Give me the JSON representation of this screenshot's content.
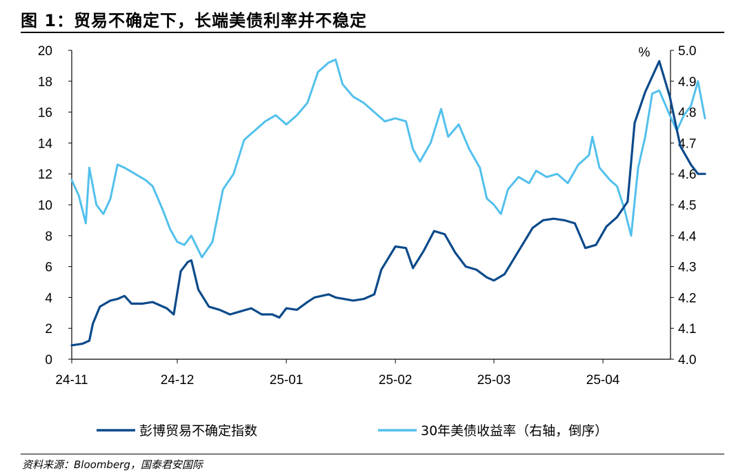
{
  "title": "图 1：贸易不确定下，长端美债利率并不稳定",
  "source": "资料来源：Bloomberg，国泰君安国际",
  "chart_data": {
    "type": "line",
    "x_tick_labels": [
      "24-11",
      "24-12",
      "25-01",
      "25-02",
      "25-03",
      "25-04"
    ],
    "y_left": {
      "ylim": [
        0,
        20
      ],
      "ticks": [
        "0",
        "2",
        "4",
        "6",
        "8",
        "10",
        "12",
        "14",
        "16",
        "18",
        "20"
      ]
    },
    "y_right": {
      "unit": "%",
      "ylim": [
        4.0,
        5.0
      ],
      "inverted": true,
      "ticks": [
        "4.0",
        "4.1",
        "4.2",
        "4.3",
        "4.4",
        "4.5",
        "4.6",
        "4.7",
        "4.8",
        "4.9",
        "5.0"
      ]
    },
    "colors": {
      "uncertainty": "#0b4a8a",
      "yield": "#52c0ec"
    },
    "series": [
      {
        "name": "彭博贸易不确定指数",
        "axis": "left",
        "values": [
          [
            "2024-11-01",
            0.9
          ],
          [
            "2024-11-04",
            1.0
          ],
          [
            "2024-11-06",
            1.2
          ],
          [
            "2024-11-07",
            2.3
          ],
          [
            "2024-11-09",
            3.4
          ],
          [
            "2024-11-12",
            3.8
          ],
          [
            "2024-11-14",
            3.9
          ],
          [
            "2024-11-16",
            4.1
          ],
          [
            "2024-11-18",
            3.6
          ],
          [
            "2024-11-21",
            3.6
          ],
          [
            "2024-11-24",
            3.7
          ],
          [
            "2024-11-26",
            3.5
          ],
          [
            "2024-11-28",
            3.3
          ],
          [
            "2024-11-30",
            2.9
          ],
          [
            "2024-12-02",
            5.7
          ],
          [
            "2024-12-04",
            6.3
          ],
          [
            "2024-12-05",
            6.4
          ],
          [
            "2024-12-07",
            4.5
          ],
          [
            "2024-12-10",
            3.4
          ],
          [
            "2024-12-13",
            3.2
          ],
          [
            "2024-12-16",
            2.9
          ],
          [
            "2024-12-19",
            3.1
          ],
          [
            "2024-12-22",
            3.3
          ],
          [
            "2024-12-25",
            2.9
          ],
          [
            "2024-12-28",
            2.9
          ],
          [
            "2024-12-30",
            2.7
          ],
          [
            "2025-01-01",
            3.3
          ],
          [
            "2025-01-04",
            3.2
          ],
          [
            "2025-01-07",
            3.7
          ],
          [
            "2025-01-09",
            4.0
          ],
          [
            "2025-01-13",
            4.2
          ],
          [
            "2025-01-15",
            4.0
          ],
          [
            "2025-01-20",
            3.8
          ],
          [
            "2025-01-23",
            3.9
          ],
          [
            "2025-01-26",
            4.2
          ],
          [
            "2025-01-28",
            5.8
          ],
          [
            "2025-02-01",
            7.3
          ],
          [
            "2025-02-04",
            7.2
          ],
          [
            "2025-02-06",
            5.9
          ],
          [
            "2025-02-09",
            7.0
          ],
          [
            "2025-02-12",
            8.3
          ],
          [
            "2025-02-15",
            8.1
          ],
          [
            "2025-02-18",
            6.9
          ],
          [
            "2025-02-21",
            6.0
          ],
          [
            "2025-02-24",
            5.8
          ],
          [
            "2025-02-27",
            5.3
          ],
          [
            "2025-03-01",
            5.1
          ],
          [
            "2025-03-04",
            5.5
          ],
          [
            "2025-03-08",
            7.0
          ],
          [
            "2025-03-12",
            8.5
          ],
          [
            "2025-03-15",
            9.0
          ],
          [
            "2025-03-18",
            9.1
          ],
          [
            "2025-03-21",
            9.0
          ],
          [
            "2025-03-24",
            8.8
          ],
          [
            "2025-03-27",
            7.2
          ],
          [
            "2025-03-30",
            7.4
          ],
          [
            "2025-04-02",
            8.6
          ],
          [
            "2025-04-05",
            9.2
          ],
          [
            "2025-04-08",
            10.2
          ],
          [
            "2025-04-10",
            15.3
          ],
          [
            "2025-04-13",
            17.3
          ],
          [
            "2025-04-17",
            19.3
          ],
          [
            "2025-04-20",
            17.0
          ],
          [
            "2025-04-23",
            13.8
          ],
          [
            "2025-04-26",
            12.6
          ],
          [
            "2025-04-28",
            12.0
          ],
          [
            "2025-04-30",
            12.0
          ]
        ]
      },
      {
        "name": "30年美债收益率（右轴，倒序）",
        "axis": "right",
        "values": [
          [
            "2024-11-01",
            4.58
          ],
          [
            "2024-11-03",
            4.53
          ],
          [
            "2024-11-05",
            4.44
          ],
          [
            "2024-11-06",
            4.62
          ],
          [
            "2024-11-08",
            4.5
          ],
          [
            "2024-11-10",
            4.47
          ],
          [
            "2024-11-12",
            4.52
          ],
          [
            "2024-11-14",
            4.63
          ],
          [
            "2024-11-16",
            4.62
          ],
          [
            "2024-11-19",
            4.6
          ],
          [
            "2024-11-22",
            4.58
          ],
          [
            "2024-11-24",
            4.56
          ],
          [
            "2024-11-27",
            4.48
          ],
          [
            "2024-11-29",
            4.42
          ],
          [
            "2024-12-01",
            4.38
          ],
          [
            "2024-12-03",
            4.37
          ],
          [
            "2024-12-05",
            4.4
          ],
          [
            "2024-12-08",
            4.33
          ],
          [
            "2024-12-11",
            4.38
          ],
          [
            "2024-12-14",
            4.55
          ],
          [
            "2024-12-17",
            4.6
          ],
          [
            "2024-12-20",
            4.71
          ],
          [
            "2024-12-23",
            4.74
          ],
          [
            "2024-12-26",
            4.77
          ],
          [
            "2024-12-29",
            4.79
          ],
          [
            "2025-01-01",
            4.76
          ],
          [
            "2025-01-04",
            4.79
          ],
          [
            "2025-01-07",
            4.83
          ],
          [
            "2025-01-10",
            4.93
          ],
          [
            "2025-01-13",
            4.96
          ],
          [
            "2025-01-15",
            4.97
          ],
          [
            "2025-01-17",
            4.89
          ],
          [
            "2025-01-20",
            4.85
          ],
          [
            "2025-01-23",
            4.83
          ],
          [
            "2025-01-26",
            4.8
          ],
          [
            "2025-01-29",
            4.77
          ],
          [
            "2025-02-01",
            4.78
          ],
          [
            "2025-02-04",
            4.77
          ],
          [
            "2025-02-06",
            4.68
          ],
          [
            "2025-02-08",
            4.64
          ],
          [
            "2025-02-11",
            4.7
          ],
          [
            "2025-02-14",
            4.81
          ],
          [
            "2025-02-16",
            4.72
          ],
          [
            "2025-02-19",
            4.76
          ],
          [
            "2025-02-22",
            4.68
          ],
          [
            "2025-02-25",
            4.62
          ],
          [
            "2025-02-27",
            4.52
          ],
          [
            "2025-03-01",
            4.5
          ],
          [
            "2025-03-03",
            4.47
          ],
          [
            "2025-03-05",
            4.55
          ],
          [
            "2025-03-08",
            4.59
          ],
          [
            "2025-03-11",
            4.57
          ],
          [
            "2025-03-13",
            4.61
          ],
          [
            "2025-03-16",
            4.59
          ],
          [
            "2025-03-19",
            4.6
          ],
          [
            "2025-03-22",
            4.57
          ],
          [
            "2025-03-25",
            4.63
          ],
          [
            "2025-03-28",
            4.66
          ],
          [
            "2025-03-29",
            4.72
          ],
          [
            "2025-03-31",
            4.62
          ],
          [
            "2025-04-03",
            4.58
          ],
          [
            "2025-04-05",
            4.56
          ],
          [
            "2025-04-07",
            4.49
          ],
          [
            "2025-04-09",
            4.4
          ],
          [
            "2025-04-11",
            4.62
          ],
          [
            "2025-04-13",
            4.72
          ],
          [
            "2025-04-15",
            4.86
          ],
          [
            "2025-04-17",
            4.87
          ],
          [
            "2025-04-20",
            4.79
          ],
          [
            "2025-04-22",
            4.74
          ],
          [
            "2025-04-24",
            4.79
          ],
          [
            "2025-04-26",
            4.82
          ],
          [
            "2025-04-28",
            4.9
          ],
          [
            "2025-04-30",
            4.78
          ]
        ]
      }
    ]
  }
}
